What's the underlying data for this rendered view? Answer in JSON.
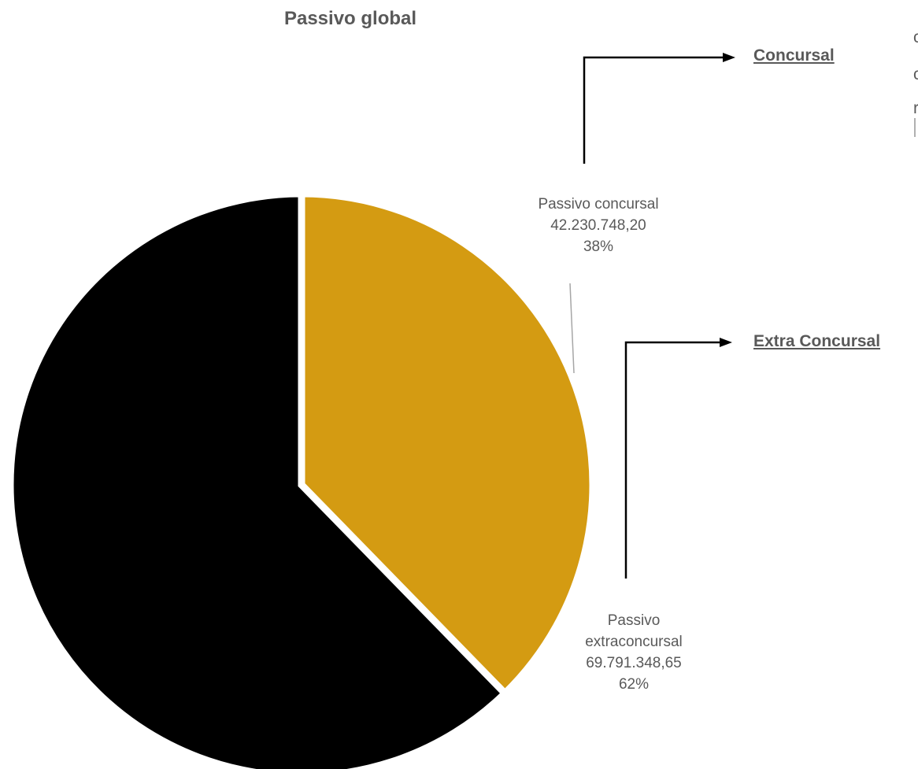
{
  "chart_data": {
    "type": "pie",
    "title": "Passivo global",
    "slices": [
      {
        "label_lines": [
          "Passivo concursal"
        ],
        "value": 42230748.2,
        "value_label": "42.230.748,20",
        "percent": 38,
        "percent_label": "38%",
        "color": "#D49B12"
      },
      {
        "label_lines": [
          "Passivo",
          "extraconcursal"
        ],
        "value": 69791348.65,
        "value_label": "69.791.348,65",
        "percent": 62,
        "percent_label": "62%",
        "color": "#000000"
      }
    ]
  },
  "links": {
    "concursal": "Concursal",
    "extra_concursal": "Extra Concursal"
  },
  "edge_glyphs": [
    "c",
    "c",
    "r"
  ]
}
